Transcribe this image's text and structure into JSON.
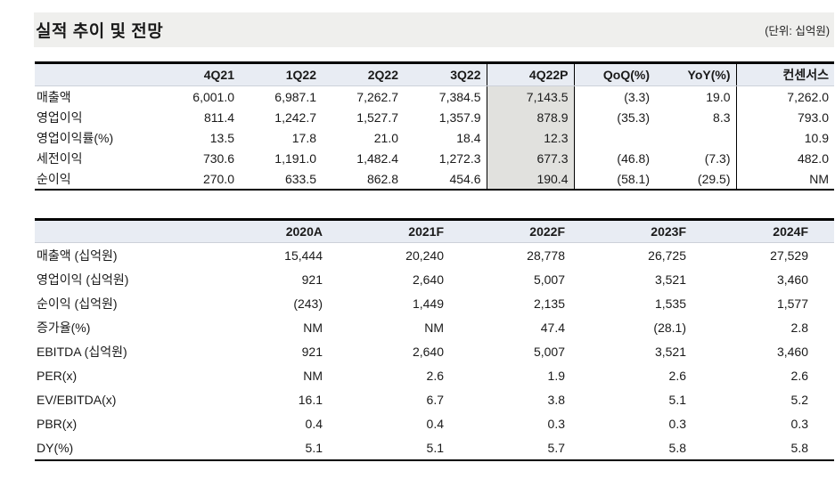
{
  "page": {
    "title": "실적 추이 및 전망",
    "unit_note": "(단위: 십억원)"
  },
  "colors": {
    "title_band_bg": "#efefed",
    "table_header_bg": "#e8ecf3",
    "highlight_column_bg": "#e1e1de",
    "border": "#000000"
  },
  "quarterly_table": {
    "columns": [
      "",
      "4Q21",
      "1Q22",
      "2Q22",
      "3Q22",
      "4Q22P",
      "QoQ(%)",
      "YoY(%)",
      "컨센서스"
    ],
    "highlight_column": "4Q22P",
    "rows": [
      {
        "label": "매출액",
        "values": [
          "6,001.0",
          "6,987.1",
          "7,262.7",
          "7,384.5",
          "7,143.5",
          "(3.3)",
          "19.0",
          "7,262.0"
        ]
      },
      {
        "label": "영업이익",
        "values": [
          "811.4",
          "1,242.7",
          "1,527.7",
          "1,357.9",
          "878.9",
          "(35.3)",
          "8.3",
          "793.0"
        ]
      },
      {
        "label": "영업이익률(%)",
        "values": [
          "13.5",
          "17.8",
          "21.0",
          "18.4",
          "12.3",
          "",
          "",
          "10.9"
        ]
      },
      {
        "label": "세전이익",
        "values": [
          "730.6",
          "1,191.0",
          "1,482.4",
          "1,272.3",
          "677.3",
          "(46.8)",
          "(7.3)",
          "482.0"
        ]
      },
      {
        "label": "순이익",
        "values": [
          "270.0",
          "633.5",
          "862.8",
          "454.6",
          "190.4",
          "(58.1)",
          "(29.5)",
          "NM"
        ]
      }
    ]
  },
  "annual_table": {
    "columns": [
      "",
      "2020A",
      "2021F",
      "2022F",
      "2023F",
      "2024F"
    ],
    "rows": [
      {
        "label": "매출액 (십억원)",
        "values": [
          "15,444",
          "20,240",
          "28,778",
          "26,725",
          "27,529"
        ]
      },
      {
        "label": "영업이익 (십억원)",
        "values": [
          "921",
          "2,640",
          "5,007",
          "3,521",
          "3,460"
        ]
      },
      {
        "label": "순이익 (십억원)",
        "values": [
          "(243)",
          "1,449",
          "2,135",
          "1,535",
          "1,577"
        ]
      },
      {
        "label": "증가율(%)",
        "values": [
          "NM",
          "NM",
          "47.4",
          "(28.1)",
          "2.8"
        ]
      },
      {
        "label": "EBITDA (십억원)",
        "values": [
          "921",
          "2,640",
          "5,007",
          "3,521",
          "3,460"
        ]
      },
      {
        "label": "PER(x)",
        "values": [
          "NM",
          "2.6",
          "1.9",
          "2.6",
          "2.6"
        ]
      },
      {
        "label": "EV/EBITDA(x)",
        "values": [
          "16.1",
          "6.7",
          "3.8",
          "5.1",
          "5.2"
        ]
      },
      {
        "label": "PBR(x)",
        "values": [
          "0.4",
          "0.4",
          "0.3",
          "0.3",
          "0.3"
        ]
      },
      {
        "label": "DY(%)",
        "values": [
          "5.1",
          "5.1",
          "5.7",
          "5.8",
          "5.8"
        ]
      }
    ]
  }
}
